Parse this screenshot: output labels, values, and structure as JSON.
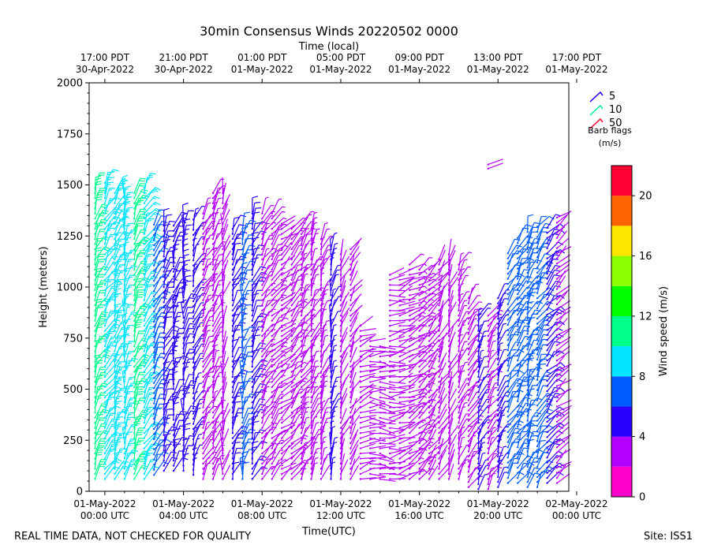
{
  "chart_data": {
    "type": "wind-barb",
    "title": "30min Consensus Winds 20220502 0000",
    "top_axis_label": "Time (local)",
    "xlabel": "Time(UTC)",
    "ylabel": "Height (meters)",
    "ylim": [
      0,
      2000
    ],
    "y_ticks": [
      0,
      250,
      500,
      750,
      1000,
      1250,
      1500,
      1750,
      2000
    ],
    "x_range_hours_utc": [
      -0.8,
      23.6
    ],
    "x_ticks_utc": [
      {
        "hour": 0,
        "line1": "01-May-2022",
        "line2": "00:00 UTC"
      },
      {
        "hour": 4,
        "line1": "01-May-2022",
        "line2": "04:00 UTC"
      },
      {
        "hour": 8,
        "line1": "01-May-2022",
        "line2": "08:00 UTC"
      },
      {
        "hour": 12,
        "line1": "01-May-2022",
        "line2": "12:00 UTC"
      },
      {
        "hour": 16,
        "line1": "01-May-2022",
        "line2": "16:00 UTC"
      },
      {
        "hour": 20,
        "line1": "01-May-2022",
        "line2": "20:00 UTC"
      },
      {
        "hour": 24,
        "line1": "02-May-2022",
        "line2": "00:00 UTC"
      }
    ],
    "x_ticks_local": [
      {
        "hour": 0,
        "line1": "17:00 PDT",
        "line2": "30-Apr-2022"
      },
      {
        "hour": 4,
        "line1": "21:00 PDT",
        "line2": "30-Apr-2022"
      },
      {
        "hour": 8,
        "line1": "01:00 PDT",
        "line2": "01-May-2022"
      },
      {
        "hour": 12,
        "line1": "05:00 PDT",
        "line2": "01-May-2022"
      },
      {
        "hour": 16,
        "line1": "09:00 PDT",
        "line2": "01-May-2022"
      },
      {
        "hour": 20,
        "line1": "13:00 PDT",
        "line2": "01-May-2022"
      },
      {
        "hour": 24,
        "line1": "17:00 PDT",
        "line2": "01-May-2022"
      }
    ],
    "barb_legend": {
      "title_line1": "Barb flags",
      "title_line2": "(m/s)",
      "entries": [
        {
          "label": "5",
          "color": "#1a00ff"
        },
        {
          "label": "10",
          "color": "#00e8a0"
        },
        {
          "label": "50",
          "color": "#ff0030"
        }
      ]
    },
    "colorbar": {
      "label": "Wind speed (m/s)",
      "min": 0,
      "max": 22,
      "ticks": [
        0,
        4,
        8,
        12,
        16,
        20
      ],
      "bins": [
        {
          "from": 0,
          "to": 2,
          "color": "#ff00c8"
        },
        {
          "from": 2,
          "to": 4,
          "color": "#b400ff"
        },
        {
          "from": 4,
          "to": 6,
          "color": "#2800ff"
        },
        {
          "from": 6,
          "to": 8,
          "color": "#005cff"
        },
        {
          "from": 8,
          "to": 10,
          "color": "#00e4ff"
        },
        {
          "from": 10,
          "to": 12,
          "color": "#00ff8c"
        },
        {
          "from": 12,
          "to": 14,
          "color": "#00ff00"
        },
        {
          "from": 14,
          "to": 16,
          "color": "#8cff00"
        },
        {
          "from": 16,
          "to": 18,
          "color": "#ffe600"
        },
        {
          "from": 18,
          "to": 20,
          "color": "#ff6400"
        },
        {
          "from": 20,
          "to": 22,
          "color": "#ff0032"
        }
      ]
    },
    "interval_hours": 0.5,
    "columns": [
      {
        "hour": -0.5,
        "segments": [
          {
            "bottom": 60,
            "top": 1500,
            "speed": 11,
            "dir": 200
          }
        ]
      },
      {
        "hour": 0,
        "segments": [
          {
            "bottom": 60,
            "top": 1520,
            "speed": 9,
            "dir": 210
          }
        ]
      },
      {
        "hour": 0.5,
        "segments": [
          {
            "bottom": 60,
            "top": 1480,
            "speed": 8,
            "dir": 200
          }
        ]
      },
      {
        "hour": 1,
        "segments": [
          {
            "bottom": 60,
            "top": 1460,
            "speed": 9,
            "dir": 190
          }
        ]
      },
      {
        "hour": 1.5,
        "segments": [
          {
            "bottom": 60,
            "top": 1480,
            "speed": 10,
            "dir": 200
          }
        ]
      },
      {
        "hour": 2,
        "segments": [
          {
            "bottom": 60,
            "top": 1500,
            "speed": 9,
            "dir": 210
          }
        ]
      },
      {
        "hour": 2.5,
        "segments": [
          {
            "bottom": 80,
            "top": 1310,
            "speed": 7,
            "dir": 210
          }
        ]
      },
      {
        "hour": 3,
        "segments": [
          {
            "bottom": 100,
            "top": 1310,
            "speed": 5,
            "dir": 200
          }
        ]
      },
      {
        "hour": 3.5,
        "segments": [
          {
            "bottom": 100,
            "top": 1320,
            "speed": 5,
            "dir": 195
          }
        ]
      },
      {
        "hour": 4,
        "segments": [
          {
            "bottom": 100,
            "top": 1340,
            "speed": 5,
            "dir": 190
          }
        ]
      },
      {
        "hour": 4.5,
        "segments": [
          {
            "bottom": 80,
            "top": 1350,
            "speed": 4,
            "dir": 200
          }
        ]
      },
      {
        "hour": 5,
        "segments": [
          {
            "bottom": 60,
            "top": 1380,
            "speed": 3,
            "dir": 210
          }
        ]
      },
      {
        "hour": 5.5,
        "segments": [
          {
            "bottom": 60,
            "top": 1470,
            "speed": 3,
            "dir": 200
          }
        ]
      },
      {
        "hour": 6,
        "segments": [
          {
            "bottom": 60,
            "top": 1480,
            "speed": 2,
            "dir": 190
          }
        ]
      },
      {
        "hour": 6.5,
        "segments": [
          {
            "bottom": 60,
            "top": 1300,
            "speed": 5,
            "dir": 200
          }
        ]
      },
      {
        "hour": 7,
        "segments": [
          {
            "bottom": 60,
            "top": 1300,
            "speed": 6,
            "dir": 190
          }
        ]
      },
      {
        "hour": 7.5,
        "segments": [
          {
            "bottom": 60,
            "top": 1380,
            "speed": 5,
            "dir": 200
          }
        ]
      },
      {
        "hour": 8,
        "segments": [
          {
            "bottom": 60,
            "top": 1380,
            "speed": 3,
            "dir": 210
          }
        ]
      },
      {
        "hour": 8.5,
        "segments": [
          {
            "bottom": 60,
            "top": 1360,
            "speed": 3,
            "dir": 220
          }
        ]
      },
      {
        "hour": 9,
        "segments": [
          {
            "bottom": 60,
            "top": 1320,
            "speed": 2,
            "dir": 230
          }
        ]
      },
      {
        "hour": 9.5,
        "segments": [
          {
            "bottom": 60,
            "top": 1300,
            "speed": 3,
            "dir": 220
          }
        ]
      },
      {
        "hour": 10,
        "segments": [
          {
            "bottom": 60,
            "top": 1310,
            "speed": 3,
            "dir": 210
          }
        ]
      },
      {
        "hour": 10.5,
        "segments": [
          {
            "bottom": 60,
            "top": 1300,
            "speed": 3,
            "dir": 200
          }
        ]
      },
      {
        "hour": 11,
        "segments": [
          {
            "bottom": 60,
            "top": 1240,
            "speed": 3,
            "dir": 195
          }
        ]
      },
      {
        "hour": 11.5,
        "segments": [
          {
            "bottom": 60,
            "top": 1190,
            "speed": 4,
            "dir": 190
          }
        ]
      },
      {
        "hour": 12,
        "segments": [
          {
            "bottom": 60,
            "top": 1180,
            "speed": 2,
            "dir": 200
          }
        ]
      },
      {
        "hour": 12.5,
        "segments": [
          {
            "bottom": 60,
            "top": 1200,
            "speed": 2,
            "dir": 210
          }
        ]
      },
      {
        "hour": 13,
        "segments": [
          {
            "bottom": 60,
            "top": 820,
            "speed": 2,
            "dir": 250
          }
        ]
      },
      {
        "hour": 13.5,
        "segments": [
          {
            "bottom": 60,
            "top": 740,
            "speed": 2,
            "dir": 270
          }
        ]
      },
      {
        "hour": 14,
        "segments": [
          {
            "bottom": 60,
            "top": 720,
            "speed": 2,
            "dir": 280
          }
        ]
      },
      {
        "hour": 14.5,
        "segments": [
          {
            "bottom": 60,
            "top": 1080,
            "speed": 2,
            "dir": 260
          }
        ]
      },
      {
        "hour": 15,
        "segments": [
          {
            "bottom": 60,
            "top": 1060,
            "speed": 2,
            "dir": 250
          }
        ]
      },
      {
        "hour": 15.5,
        "segments": [
          {
            "bottom": 60,
            "top": 1120,
            "speed": 3,
            "dir": 240
          }
        ]
      },
      {
        "hour": 16,
        "segments": [
          {
            "bottom": 60,
            "top": 1090,
            "speed": 3,
            "dir": 230
          }
        ]
      },
      {
        "hour": 16.5,
        "segments": [
          {
            "bottom": 60,
            "top": 1100,
            "speed": 2,
            "dir": 220
          }
        ]
      },
      {
        "hour": 17,
        "segments": [
          {
            "bottom": 60,
            "top": 1150,
            "speed": 2,
            "dir": 210
          }
        ]
      },
      {
        "hour": 17.5,
        "segments": [
          {
            "bottom": 60,
            "top": 1170,
            "speed": 2,
            "dir": 200
          }
        ]
      },
      {
        "hour": 18,
        "segments": [
          {
            "bottom": 60,
            "top": 1130,
            "speed": 3,
            "dir": 200
          }
        ]
      },
      {
        "hour": 18.5,
        "segments": [
          {
            "bottom": 20,
            "top": 960,
            "speed": 3,
            "dir": 210
          }
        ]
      },
      {
        "hour": 19,
        "segments": [
          {
            "bottom": 10,
            "top": 880,
            "speed": 4,
            "dir": 200
          }
        ]
      },
      {
        "hour": 19.5,
        "segments": [
          {
            "bottom": 10,
            "top": 880,
            "speed": 3,
            "dir": 210
          }
        ]
      },
      {
        "hour": 20,
        "segments": [
          {
            "bottom": 20,
            "top": 960,
            "speed": 4,
            "dir": 200
          }
        ]
      },
      {
        "hour": 20.5,
        "segments": [
          {
            "bottom": 40,
            "top": 1180,
            "speed": 7,
            "dir": 210
          }
        ]
      },
      {
        "hour": 21,
        "segments": [
          {
            "bottom": 40,
            "top": 1240,
            "speed": 6,
            "dir": 210
          }
        ]
      },
      {
        "hour": 21.5,
        "segments": [
          {
            "bottom": 20,
            "top": 1280,
            "speed": 7,
            "dir": 200
          }
        ]
      },
      {
        "hour": 22,
        "segments": [
          {
            "bottom": 20,
            "top": 1300,
            "speed": 6,
            "dir": 210
          }
        ]
      },
      {
        "hour": 22.5,
        "segments": [
          {
            "bottom": 40,
            "top": 1300,
            "speed": 5,
            "dir": 220
          }
        ]
      },
      {
        "hour": 23,
        "segments": [
          {
            "bottom": 40,
            "top": 1340,
            "speed": 2,
            "dir": 230
          }
        ]
      }
    ],
    "isolated_barbs": [
      {
        "hour": 19.5,
        "height": 1600,
        "speed": 2,
        "dir": 250
      },
      {
        "hour": 19.5,
        "height": 1580,
        "speed": 2,
        "dir": 250
      }
    ]
  },
  "footer": {
    "left": "REAL TIME DATA, NOT CHECKED FOR QUALITY",
    "right": "Site: ISS1"
  }
}
